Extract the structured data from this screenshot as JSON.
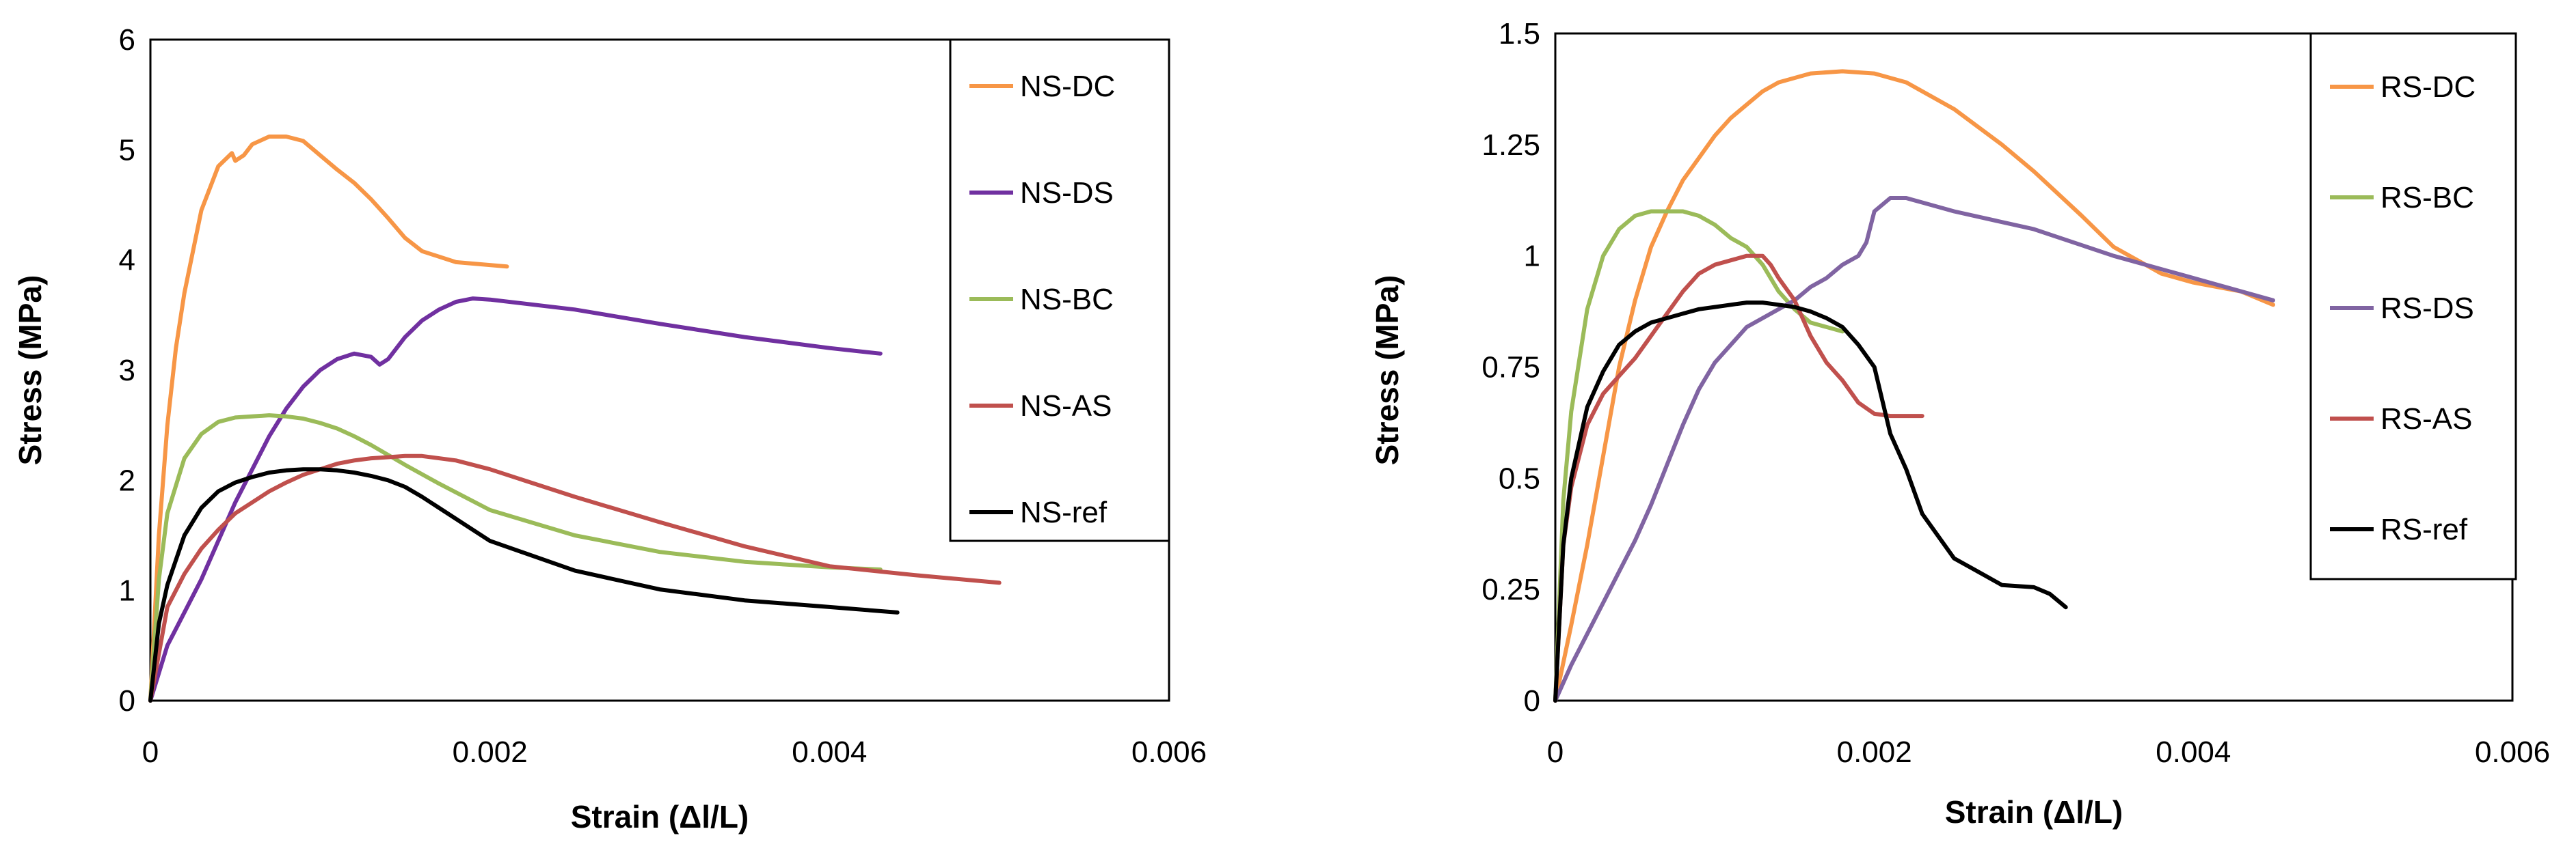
{
  "chart_data": [
    {
      "type": "line",
      "title": "",
      "xlabel": "Strain (Δl/L)",
      "ylabel": "Stress (MPa)",
      "xlim": [
        0,
        0.006
      ],
      "ylim": [
        0,
        6
      ],
      "xticks": [
        0,
        0.002,
        0.004,
        0.006
      ],
      "xtick_labels": [
        "0",
        "0.002",
        "0.004",
        "0.006"
      ],
      "yticks": [
        0,
        1,
        2,
        3,
        4,
        5,
        6
      ],
      "ytick_labels": [
        "0",
        "1",
        "2",
        "3",
        "4",
        "5",
        "6"
      ],
      "grid": false,
      "legend_position": "top-right",
      "series": [
        {
          "name": "NS-DC",
          "color": "#f79646",
          "x": [
            0,
            5e-05,
            0.0001,
            0.00015,
            0.0002,
            0.0003,
            0.0004,
            0.00048,
            0.0005,
            0.00055,
            0.0006,
            0.0007,
            0.0008,
            0.0009,
            0.001,
            0.0011,
            0.0012,
            0.0013,
            0.0014,
            0.0015,
            0.0016,
            0.0018,
            0.0021
          ],
          "y": [
            0,
            1.5,
            2.5,
            3.2,
            3.7,
            4.45,
            4.85,
            4.97,
            4.9,
            4.95,
            5.05,
            5.12,
            5.12,
            5.08,
            4.95,
            4.82,
            4.7,
            4.55,
            4.38,
            4.2,
            4.08,
            3.98,
            3.94
          ]
        },
        {
          "name": "NS-DS",
          "color": "#7030a0",
          "x": [
            0,
            0.0001,
            0.0002,
            0.0003,
            0.0004,
            0.0005,
            0.0006,
            0.0007,
            0.0008,
            0.0009,
            0.001,
            0.0011,
            0.0012,
            0.0013,
            0.00135,
            0.0014,
            0.0015,
            0.0016,
            0.0017,
            0.0018,
            0.0019,
            0.002,
            0.0025,
            0.003,
            0.0035,
            0.004,
            0.0043
          ],
          "y": [
            0,
            0.5,
            0.8,
            1.1,
            1.45,
            1.8,
            2.1,
            2.4,
            2.65,
            2.85,
            3.0,
            3.1,
            3.15,
            3.12,
            3.05,
            3.1,
            3.3,
            3.45,
            3.55,
            3.62,
            3.65,
            3.64,
            3.55,
            3.42,
            3.3,
            3.2,
            3.15
          ]
        },
        {
          "name": "NS-BC",
          "color": "#9bbb59",
          "x": [
            0,
            5e-05,
            0.0001,
            0.0002,
            0.0003,
            0.0004,
            0.0005,
            0.0006,
            0.0007,
            0.0008,
            0.0009,
            0.001,
            0.0011,
            0.0012,
            0.0013,
            0.0014,
            0.0015,
            0.0017,
            0.002,
            0.0025,
            0.003,
            0.0035,
            0.004,
            0.0043
          ],
          "y": [
            0,
            1.1,
            1.7,
            2.2,
            2.42,
            2.53,
            2.57,
            2.58,
            2.59,
            2.58,
            2.56,
            2.52,
            2.47,
            2.4,
            2.32,
            2.23,
            2.14,
            1.97,
            1.73,
            1.5,
            1.35,
            1.26,
            1.21,
            1.19
          ]
        },
        {
          "name": "NS-AS",
          "color": "#c0504d",
          "x": [
            0,
            0.0001,
            0.0002,
            0.0003,
            0.0004,
            0.0005,
            0.0006,
            0.0007,
            0.0008,
            0.0009,
            0.001,
            0.0011,
            0.0012,
            0.0013,
            0.0014,
            0.0015,
            0.0016,
            0.0018,
            0.002,
            0.0025,
            0.003,
            0.0035,
            0.004,
            0.0045,
            0.005
          ],
          "y": [
            0,
            0.85,
            1.15,
            1.38,
            1.55,
            1.7,
            1.8,
            1.9,
            1.98,
            2.05,
            2.1,
            2.15,
            2.18,
            2.2,
            2.21,
            2.22,
            2.22,
            2.18,
            2.1,
            1.85,
            1.62,
            1.4,
            1.22,
            1.14,
            1.07
          ]
        },
        {
          "name": "NS-ref",
          "color": "#000000",
          "x": [
            0,
            5e-05,
            0.0001,
            0.0002,
            0.0003,
            0.0004,
            0.0005,
            0.0006,
            0.0007,
            0.0008,
            0.0009,
            0.001,
            0.0011,
            0.0012,
            0.0013,
            0.0014,
            0.0015,
            0.0016,
            0.0018,
            0.002,
            0.0025,
            0.003,
            0.0035,
            0.004,
            0.0044
          ],
          "y": [
            0,
            0.7,
            1.05,
            1.5,
            1.75,
            1.9,
            1.98,
            2.03,
            2.07,
            2.09,
            2.1,
            2.1,
            2.09,
            2.07,
            2.04,
            2.0,
            1.94,
            1.85,
            1.65,
            1.45,
            1.18,
            1.01,
            0.91,
            0.85,
            0.8
          ]
        }
      ]
    },
    {
      "type": "line",
      "title": "",
      "xlabel": "Strain (Δl/L)",
      "ylabel": "Stress (MPa)",
      "xlim": [
        0,
        0.006
      ],
      "ylim": [
        0,
        1.5
      ],
      "xticks": [
        0,
        0.002,
        0.004,
        0.006
      ],
      "xtick_labels": [
        "0",
        "0.002",
        "0.004",
        "0.006"
      ],
      "yticks": [
        0,
        0.25,
        0.5,
        0.75,
        1,
        1.25,
        1.5
      ],
      "ytick_labels": [
        "0",
        "0.25",
        "0.5",
        "0.75",
        "1",
        "1.25",
        "1.5"
      ],
      "grid": false,
      "legend_position": "top-right",
      "series": [
        {
          "name": "RS-DC",
          "color": "#f79646",
          "x": [
            0,
            0.0001,
            0.0002,
            0.0003,
            0.0004,
            0.0005,
            0.0006,
            0.0007,
            0.0008,
            0.0009,
            0.001,
            0.0011,
            0.0012,
            0.0013,
            0.0014,
            0.0015,
            0.0016,
            0.0018,
            0.002,
            0.0022,
            0.0025,
            0.0028,
            0.003,
            0.0033,
            0.0035,
            0.0038,
            0.004,
            0.0043,
            0.0045
          ],
          "y": [
            0,
            0.17,
            0.35,
            0.55,
            0.75,
            0.9,
            1.02,
            1.1,
            1.17,
            1.22,
            1.27,
            1.31,
            1.34,
            1.37,
            1.39,
            1.4,
            1.41,
            1.415,
            1.41,
            1.39,
            1.33,
            1.25,
            1.19,
            1.09,
            1.02,
            0.96,
            0.94,
            0.92,
            0.89
          ]
        },
        {
          "name": "RS-BC",
          "color": "#9bbb59",
          "x": [
            0,
            5e-05,
            0.0001,
            0.0002,
            0.0003,
            0.0004,
            0.0005,
            0.0006,
            0.0007,
            0.0008,
            0.0009,
            0.001,
            0.0011,
            0.0012,
            0.0013,
            0.0014,
            0.0015,
            0.0016,
            0.0017,
            0.0018
          ],
          "y": [
            0,
            0.45,
            0.65,
            0.88,
            1.0,
            1.06,
            1.09,
            1.1,
            1.1,
            1.1,
            1.09,
            1.07,
            1.04,
            1.02,
            0.98,
            0.92,
            0.88,
            0.85,
            0.84,
            0.83
          ]
        },
        {
          "name": "RS-DS",
          "color": "#8064a2",
          "x": [
            0,
            0.0001,
            0.0002,
            0.0003,
            0.0004,
            0.0005,
            0.0006,
            0.0007,
            0.0008,
            0.0009,
            0.001,
            0.0011,
            0.0012,
            0.0013,
            0.0014,
            0.0015,
            0.0016,
            0.0017,
            0.0018,
            0.0019,
            0.00195,
            0.002,
            0.0021,
            0.0022,
            0.0023,
            0.0025,
            0.003,
            0.0035,
            0.004,
            0.0045
          ],
          "y": [
            0,
            0.08,
            0.15,
            0.22,
            0.29,
            0.36,
            0.44,
            0.53,
            0.62,
            0.7,
            0.76,
            0.8,
            0.84,
            0.86,
            0.88,
            0.9,
            0.93,
            0.95,
            0.98,
            1.0,
            1.03,
            1.1,
            1.13,
            1.13,
            1.12,
            1.1,
            1.06,
            1.0,
            0.95,
            0.9
          ]
        },
        {
          "name": "RS-AS",
          "color": "#c0504d",
          "x": [
            0,
            5e-05,
            0.0001,
            0.0002,
            0.0003,
            0.0004,
            0.0005,
            0.0006,
            0.0007,
            0.0008,
            0.0009,
            0.001,
            0.0011,
            0.0012,
            0.0013,
            0.00135,
            0.0014,
            0.0015,
            0.0016,
            0.0017,
            0.0018,
            0.0019,
            0.002,
            0.0021,
            0.0022,
            0.0023
          ],
          "y": [
            0,
            0.35,
            0.48,
            0.62,
            0.69,
            0.73,
            0.77,
            0.82,
            0.87,
            0.92,
            0.96,
            0.98,
            0.99,
            1.0,
            1.0,
            0.98,
            0.95,
            0.9,
            0.82,
            0.76,
            0.72,
            0.67,
            0.645,
            0.64,
            0.64,
            0.64
          ]
        },
        {
          "name": "RS-ref",
          "color": "#000000",
          "x": [
            0,
            5e-05,
            0.0001,
            0.0002,
            0.0003,
            0.0004,
            0.0005,
            0.0006,
            0.0007,
            0.0008,
            0.0009,
            0.001,
            0.0011,
            0.0012,
            0.0013,
            0.0014,
            0.0015,
            0.0016,
            0.0017,
            0.0018,
            0.0019,
            0.002,
            0.0021,
            0.0022,
            0.0023,
            0.0024,
            0.0025,
            0.0026,
            0.0027,
            0.0028,
            0.003,
            0.0031,
            0.0032
          ],
          "y": [
            0,
            0.35,
            0.5,
            0.66,
            0.74,
            0.8,
            0.83,
            0.85,
            0.86,
            0.87,
            0.88,
            0.885,
            0.89,
            0.895,
            0.895,
            0.89,
            0.885,
            0.875,
            0.86,
            0.84,
            0.8,
            0.75,
            0.6,
            0.52,
            0.42,
            0.37,
            0.32,
            0.3,
            0.28,
            0.26,
            0.255,
            0.24,
            0.21
          ]
        }
      ]
    }
  ]
}
